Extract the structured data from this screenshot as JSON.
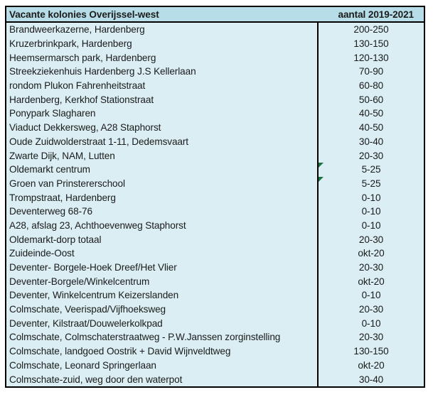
{
  "table": {
    "header": {
      "location_label": "Vacante kolonies Overijssel-west",
      "count_label": "aantal 2019-2021"
    },
    "rows": [
      {
        "location": "Brandweerkazerne, Hardenberg",
        "count": "200-250"
      },
      {
        "location": "Kruzerbrinkpark, Hardenberg",
        "count": "130-150"
      },
      {
        "location": "Heemsermarsch park, Hardenberg",
        "count": "120-130"
      },
      {
        "location": "Streekziekenhuis Hardenberg J.S Kellerlaan",
        "count": "70-90"
      },
      {
        "location": "rondom Plukon Fahrenheitstraat",
        "count": "60-80"
      },
      {
        "location": "Hardenberg, Kerkhof Stationstraat",
        "count": "50-60"
      },
      {
        "location": "Ponypark Slagharen",
        "count": "40-50"
      },
      {
        "location": "Viaduct Dekkersweg, A28 Staphorst",
        "count": "40-50"
      },
      {
        "location": "Oude Zuidwolderstraat 1-11, Dedemsvaart",
        "count": "30-40"
      },
      {
        "location": "Zwarte Dijk, NAM, Lutten",
        "count": "20-30"
      },
      {
        "location": "Oldemarkt centrum",
        "count": "5-25",
        "flag": true
      },
      {
        "location": "Groen van Prinstererschool",
        "count": "5-25",
        "flag": true
      },
      {
        "location": "Trompstraat, Hardenberg",
        "count": "0-10"
      },
      {
        "location": "Deventerweg 68-76",
        "count": "0-10"
      },
      {
        "location": "A28, afslag 23, Achthoevenweg Staphorst",
        "count": "0-10"
      },
      {
        "location": "Oldemarkt-dorp totaal",
        "count": "20-30"
      },
      {
        "location": "Zuideinde-Oost",
        "count": "okt-20"
      },
      {
        "location": "Deventer- Borgele-Hoek Dreef/Het Vlier",
        "count": "20-30"
      },
      {
        "location": "Deventer-Borgele/Winkelcentrum",
        "count": "okt-20"
      },
      {
        "location": "Deventer, Winkelcentrum Keizerslanden",
        "count": "0-10"
      },
      {
        "location": "Colmschate, Veerispad/Vijfhoeksweg",
        "count": "20-30"
      },
      {
        "location": "Deventer, Kilstraat/Douwelerkolkpad",
        "count": "0-10"
      },
      {
        "location": "Colmschate, Colmschaterstraatweg - P.W.Janssen zorginstelling",
        "count": "20-30"
      },
      {
        "location": "Colmschate, landgoed Oostrik + David Wijnveldtweg",
        "count": "130-150"
      },
      {
        "location": "Colmschate, Leonard Springerlaan",
        "count": "okt-20"
      },
      {
        "location": "Colmschate-zuid, weg door den waterpot",
        "count": "30-40"
      }
    ]
  },
  "colors": {
    "header_bg": "#b7dee8",
    "body_bg": "#daeef3",
    "border": "#000000",
    "flag_green": "#1e7145",
    "text": "#1b1b1b",
    "page_bg": "#ffffff"
  }
}
